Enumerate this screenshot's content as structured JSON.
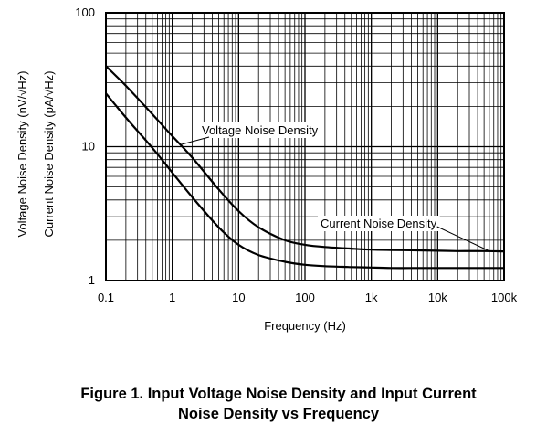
{
  "chart_data": {
    "type": "line",
    "x_scale": "log",
    "y_scale": "log",
    "xlim": [
      0.1,
      100000
    ],
    "ylim": [
      1,
      100
    ],
    "grid": true,
    "xlabel": "Frequency (Hz)",
    "ylabel_lines": [
      "Voltage Noise Density (nV/√Hz)",
      "Current Noise Density (pA/√Hz)"
    ],
    "x_tick_labels": [
      "0.1",
      "1",
      "10",
      "100",
      "1k",
      "10k",
      "100k"
    ],
    "x_tick_values": [
      0.1,
      1,
      10,
      100,
      1000,
      10000,
      100000
    ],
    "y_tick_labels": [
      "1",
      "10",
      "100"
    ],
    "y_tick_values": [
      1,
      10,
      100
    ],
    "annotations": [
      "Voltage Noise Density",
      "Current Noise Density"
    ],
    "series": [
      {
        "x": [
          0.1,
          0.2,
          0.5,
          1,
          2,
          5,
          10,
          20,
          50,
          100,
          200,
          500,
          1000,
          2000,
          5000,
          10000,
          20000,
          50000,
          100000
        ],
        "values": [
          40,
          28.5,
          17.5,
          12,
          8.3,
          4.8,
          3.3,
          2.5,
          2.0,
          1.85,
          1.78,
          1.73,
          1.7,
          1.69,
          1.68,
          1.67,
          1.66,
          1.66,
          1.65
        ]
      },
      {
        "x": [
          0.1,
          0.2,
          0.5,
          1,
          2,
          5,
          10,
          20,
          50,
          100,
          200,
          500,
          1000,
          2000,
          5000,
          10000,
          20000,
          50000,
          100000
        ],
        "values": [
          25,
          16.5,
          9.8,
          6.4,
          4.2,
          2.5,
          1.85,
          1.55,
          1.38,
          1.31,
          1.28,
          1.26,
          1.25,
          1.24,
          1.24,
          1.24,
          1.24,
          1.24,
          1.24
        ]
      }
    ]
  },
  "caption": {
    "line1": "Figure 1. Input Voltage Noise Density and Input Current",
    "line2": "Noise Density vs Frequency"
  }
}
